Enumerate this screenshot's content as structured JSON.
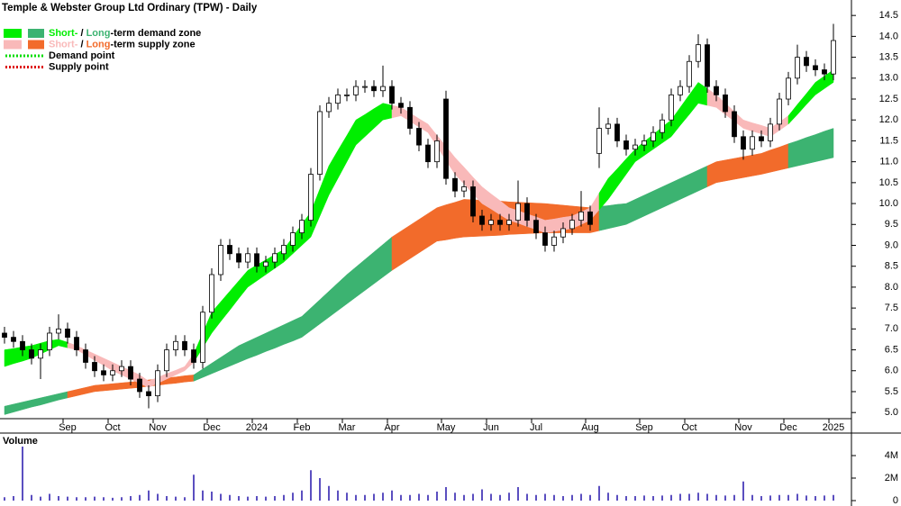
{
  "chart_data": [
    {
      "type": "candlestick",
      "title": "Temple & Webster Group Ltd Ordinary (TPW) - Daily",
      "legend": [
        {
          "parts": [
            "Short-",
            " / ",
            "Long",
            "-term demand zone"
          ],
          "colors": [
            "#00ee00",
            "#3cb371"
          ]
        },
        {
          "parts": [
            "Short-",
            " / ",
            "Long",
            "-term supply zone"
          ],
          "colors": [
            "#f9b9b9",
            "#f26b2b"
          ]
        },
        {
          "parts": [
            "Demand point"
          ],
          "color": "#00dd00"
        },
        {
          "parts": [
            "Supply point"
          ],
          "color": "#dd0000"
        }
      ],
      "categories": [
        null,
        null,
        null,
        null,
        null,
        null,
        null,
        "Sep",
        null,
        null,
        null,
        null,
        "Oct",
        null,
        null,
        null,
        null,
        "Nov",
        null,
        null,
        null,
        null,
        null,
        "Dec",
        null,
        null,
        null,
        null,
        "2024",
        null,
        null,
        null,
        null,
        "Feb",
        null,
        null,
        null,
        null,
        "Mar",
        null,
        null,
        null,
        null,
        "Apr",
        null,
        null,
        null,
        null,
        null,
        "May",
        null,
        null,
        null,
        null,
        "Jun",
        null,
        null,
        null,
        null,
        "Jul",
        null,
        null,
        null,
        null,
        null,
        "Aug",
        null,
        null,
        null,
        null,
        null,
        "Sep",
        null,
        null,
        null,
        null,
        "Oct",
        null,
        null,
        null,
        null,
        null,
        "Nov",
        null,
        null,
        null,
        null,
        "Dec",
        null,
        null,
        null,
        null,
        "2025"
      ],
      "open": [
        6.9,
        6.8,
        6.7,
        6.5,
        6.3,
        6.5,
        6.9,
        7.0,
        6.8,
        6.5,
        6.2,
        6.0,
        5.9,
        6.0,
        6.1,
        5.8,
        5.5,
        5.4,
        6.0,
        6.5,
        6.7,
        6.5,
        6.2,
        7.4,
        8.3,
        9.0,
        8.8,
        8.6,
        8.8,
        8.5,
        8.6,
        8.8,
        9.0,
        9.3,
        9.6,
        10.7,
        12.2,
        12.4,
        12.6,
        12.6,
        12.8,
        12.8,
        12.7,
        12.8,
        12.4,
        12.3,
        11.8,
        11.4,
        11.0,
        12.5,
        10.6,
        10.3,
        10.4,
        9.7,
        9.5,
        9.6,
        9.5,
        9.6,
        10.0,
        9.6,
        9.3,
        9.0,
        9.2,
        9.4,
        9.6,
        9.8,
        11.2,
        11.8,
        11.9,
        11.5,
        11.3,
        11.4,
        11.5,
        11.7,
        12.0,
        12.6,
        12.8,
        13.4,
        13.8,
        12.8,
        12.6,
        12.2,
        11.6,
        11.3,
        11.6,
        11.5,
        11.9,
        12.5,
        13.0,
        13.5,
        13.3,
        13.2,
        13.1
      ],
      "high": [
        7.05,
        6.95,
        6.85,
        6.65,
        6.65,
        7.05,
        7.35,
        7.15,
        6.95,
        6.65,
        6.35,
        6.15,
        6.15,
        6.25,
        6.25,
        5.95,
        5.65,
        6.15,
        6.65,
        6.85,
        6.85,
        6.65,
        7.55,
        8.45,
        9.15,
        9.15,
        8.95,
        8.95,
        8.95,
        8.75,
        8.95,
        9.15,
        9.45,
        9.75,
        10.85,
        12.35,
        12.55,
        12.75,
        12.75,
        12.95,
        12.95,
        12.95,
        13.3,
        12.95,
        12.55,
        12.45,
        11.95,
        11.55,
        11.65,
        12.7,
        10.75,
        10.55,
        10.55,
        9.85,
        9.75,
        9.75,
        9.75,
        10.55,
        10.15,
        9.75,
        9.45,
        9.35,
        9.55,
        9.75,
        10.3,
        9.95,
        12.3,
        12.05,
        12.05,
        11.65,
        11.55,
        11.65,
        11.85,
        12.15,
        12.75,
        12.95,
        13.55,
        14.05,
        13.95,
        12.95,
        12.75,
        12.35,
        11.75,
        11.75,
        11.75,
        12.05,
        12.65,
        13.15,
        13.8,
        13.65,
        13.45,
        13.35,
        14.3
      ],
      "low": [
        6.65,
        6.55,
        6.35,
        6.15,
        5.8,
        6.35,
        6.75,
        6.65,
        6.35,
        6.05,
        5.85,
        5.75,
        5.75,
        5.85,
        5.65,
        5.35,
        5.1,
        5.25,
        5.85,
        6.35,
        6.35,
        6.05,
        6.05,
        7.25,
        8.15,
        8.65,
        8.45,
        8.45,
        8.35,
        8.35,
        8.45,
        8.65,
        8.85,
        9.15,
        9.45,
        10.55,
        12.05,
        12.25,
        12.45,
        12.45,
        12.65,
        12.55,
        12.55,
        12.25,
        12.15,
        11.65,
        11.25,
        10.85,
        10.85,
        10.45,
        10.15,
        10.15,
        9.55,
        9.35,
        9.35,
        9.35,
        9.35,
        9.45,
        9.45,
        9.15,
        8.85,
        8.85,
        9.05,
        9.25,
        9.45,
        9.35,
        10.85,
        11.65,
        11.35,
        11.15,
        11.15,
        11.25,
        11.35,
        11.55,
        11.85,
        12.45,
        12.65,
        13.25,
        12.65,
        12.45,
        12.05,
        11.45,
        11.05,
        11.15,
        11.35,
        11.35,
        11.75,
        12.35,
        12.85,
        13.15,
        13.05,
        12.95,
        12.95
      ],
      "close": [
        6.8,
        6.7,
        6.5,
        6.3,
        6.5,
        6.9,
        7.0,
        6.8,
        6.5,
        6.2,
        6.0,
        5.9,
        6.0,
        6.1,
        5.8,
        5.5,
        5.4,
        6.0,
        6.5,
        6.7,
        6.5,
        6.2,
        7.4,
        8.3,
        9.0,
        8.8,
        8.6,
        8.8,
        8.5,
        8.6,
        8.8,
        9.0,
        9.3,
        9.6,
        10.7,
        12.2,
        12.4,
        12.6,
        12.6,
        12.8,
        12.8,
        12.7,
        12.8,
        12.4,
        12.3,
        11.8,
        11.4,
        11.0,
        11.5,
        10.6,
        10.3,
        10.4,
        9.7,
        9.5,
        9.6,
        9.5,
        9.6,
        10.0,
        9.6,
        9.3,
        9.0,
        9.2,
        9.4,
        9.6,
        9.8,
        9.5,
        11.8,
        11.9,
        11.5,
        11.3,
        11.4,
        11.5,
        11.7,
        12.0,
        12.6,
        12.8,
        13.4,
        13.8,
        12.8,
        12.6,
        12.2,
        11.6,
        11.3,
        11.6,
        11.5,
        11.9,
        12.5,
        13.0,
        13.5,
        13.3,
        13.2,
        13.1,
        13.9
      ],
      "short_term_zone": {
        "upper": [
          6.5,
          6.53,
          6.57,
          6.6,
          6.66,
          6.72,
          6.75,
          6.68,
          6.6,
          6.5,
          6.4,
          6.3,
          6.2,
          6.1,
          6.0,
          5.9,
          5.75,
          5.84,
          5.93,
          6.01,
          6.1,
          6.4,
          6.9,
          7.4,
          7.65,
          7.9,
          8.15,
          8.4,
          8.53,
          8.65,
          8.78,
          8.9,
          9.2,
          9.5,
          9.8,
          10.35,
          10.9,
          11.27,
          11.63,
          12.0,
          12.13,
          12.27,
          12.4,
          12.35,
          12.3,
          12.17,
          12.03,
          11.9,
          11.63,
          11.37,
          11.1,
          10.87,
          10.63,
          10.4,
          10.23,
          10.07,
          9.9,
          9.83,
          9.75,
          9.68,
          9.6,
          9.63,
          9.67,
          9.7,
          9.8,
          9.9,
          10.25,
          10.6,
          10.83,
          11.07,
          11.3,
          11.48,
          11.65,
          11.83,
          12.0,
          12.3,
          12.6,
          12.9,
          12.75,
          12.6,
          12.4,
          12.2,
          12.0,
          11.93,
          11.87,
          11.8,
          11.95,
          12.1,
          12.37,
          12.63,
          12.9,
          13.05,
          13.2
        ],
        "lower": [
          6.1,
          6.17,
          6.23,
          6.3,
          6.4,
          6.5,
          6.6,
          6.55,
          6.5,
          6.38,
          6.25,
          6.13,
          6.0,
          5.9,
          5.8,
          5.7,
          5.6,
          5.7,
          5.8,
          5.9,
          6.0,
          6.2,
          6.55,
          6.9,
          7.18,
          7.45,
          7.73,
          8.0,
          8.15,
          8.3,
          8.45,
          8.6,
          8.8,
          9.0,
          9.2,
          9.7,
          10.2,
          10.6,
          11.0,
          11.4,
          11.6,
          11.8,
          12.0,
          12.05,
          12.1,
          11.97,
          11.83,
          11.7,
          11.37,
          11.03,
          10.7,
          10.47,
          10.23,
          10.0,
          9.87,
          9.73,
          9.6,
          9.53,
          9.45,
          9.38,
          9.3,
          9.33,
          9.37,
          9.4,
          9.5,
          9.6,
          9.85,
          10.1,
          10.4,
          10.7,
          11.0,
          11.15,
          11.3,
          11.45,
          11.6,
          11.87,
          12.13,
          12.4,
          12.35,
          12.3,
          12.13,
          11.97,
          11.8,
          11.73,
          11.67,
          11.6,
          11.75,
          11.9,
          12.13,
          12.37,
          12.6,
          12.75,
          12.9
        ]
      },
      "long_term_zone": {
        "upper": [
          5.15,
          5.2,
          5.25,
          5.3,
          5.35,
          5.4,
          5.45,
          5.5,
          5.55,
          5.6,
          5.65,
          5.67,
          5.69,
          5.71,
          5.73,
          5.75,
          5.78,
          5.8,
          5.83,
          5.85,
          5.88,
          5.9,
          6.04,
          6.18,
          6.32,
          6.46,
          6.6,
          6.7,
          6.8,
          6.9,
          7.0,
          7.1,
          7.2,
          7.3,
          7.5,
          7.7,
          7.9,
          8.1,
          8.3,
          8.48,
          8.66,
          8.84,
          9.02,
          9.2,
          9.34,
          9.48,
          9.62,
          9.76,
          9.9,
          9.97,
          10.03,
          10.1,
          10.09,
          10.08,
          10.07,
          10.06,
          10.04,
          10.03,
          10.02,
          10.01,
          10.0,
          9.98,
          9.96,
          9.94,
          9.92,
          9.9,
          9.93,
          9.95,
          9.98,
          10.0,
          10.1,
          10.2,
          10.3,
          10.4,
          10.5,
          10.6,
          10.7,
          10.8,
          10.9,
          11.0,
          11.04,
          11.08,
          11.12,
          11.16,
          11.2,
          11.28,
          11.35,
          11.43,
          11.5,
          11.58,
          11.65,
          11.73,
          11.8
        ],
        "lower": [
          4.95,
          5.01,
          5.07,
          5.13,
          5.18,
          5.24,
          5.3,
          5.35,
          5.4,
          5.45,
          5.5,
          5.52,
          5.54,
          5.56,
          5.58,
          5.6,
          5.63,
          5.65,
          5.68,
          5.7,
          5.73,
          5.75,
          5.84,
          5.93,
          6.02,
          6.11,
          6.2,
          6.29,
          6.37,
          6.46,
          6.54,
          6.63,
          6.71,
          6.8,
          6.96,
          7.12,
          7.28,
          7.44,
          7.6,
          7.76,
          7.92,
          8.08,
          8.24,
          8.4,
          8.54,
          8.68,
          8.82,
          8.96,
          9.1,
          9.13,
          9.17,
          9.2,
          9.21,
          9.22,
          9.23,
          9.24,
          9.26,
          9.27,
          9.28,
          9.29,
          9.3,
          9.3,
          9.3,
          9.3,
          9.3,
          9.3,
          9.35,
          9.4,
          9.45,
          9.5,
          9.6,
          9.7,
          9.8,
          9.9,
          10.0,
          10.1,
          10.2,
          10.3,
          10.4,
          10.5,
          10.54,
          10.58,
          10.62,
          10.66,
          10.7,
          10.75,
          10.8,
          10.85,
          10.9,
          10.95,
          11.0,
          11.05,
          11.1
        ]
      },
      "zone": [
        "demand",
        "demand",
        "demand",
        "demand",
        "demand",
        "demand",
        "demand",
        "supply",
        "supply",
        "supply",
        "supply",
        "supply",
        "supply",
        "supply",
        "supply",
        "supply",
        "supply",
        "supply",
        "supply",
        "supply",
        "supply",
        "demand",
        "demand",
        "demand",
        "demand",
        "demand",
        "demand",
        "demand",
        "demand",
        "demand",
        "demand",
        "demand",
        "demand",
        "demand",
        "demand",
        "demand",
        "demand",
        "demand",
        "demand",
        "demand",
        "demand",
        "demand",
        "demand",
        "supply",
        "supply",
        "supply",
        "supply",
        "supply",
        "supply",
        "supply",
        "supply",
        "supply",
        "supply",
        "supply",
        "supply",
        "supply",
        "supply",
        "supply",
        "supply",
        "supply",
        "supply",
        "supply",
        "supply",
        "supply",
        "supply",
        "supply",
        "demand",
        "demand",
        "demand",
        "demand",
        "demand",
        "demand",
        "demand",
        "demand",
        "demand",
        "demand",
        "demand",
        "demand",
        "supply",
        "supply",
        "supply",
        "supply",
        "supply",
        "supply",
        "supply",
        "supply",
        "supply",
        "demand",
        "demand",
        "demand",
        "demand",
        "demand",
        "demand"
      ],
      "ylim": [
        4.53,
        14.87
      ],
      "yticks": [
        {
          "value": 5,
          "label": "5.0"
        },
        5.5,
        {
          "value": 6,
          "label": "6.0"
        },
        6.5,
        {
          "value": 7,
          "label": "7.0"
        },
        7.5,
        {
          "value": 8,
          "label": "8.0"
        },
        8.5,
        {
          "value": 9,
          "label": "9.0"
        },
        9.5,
        {
          "value": 10,
          "label": "10.0"
        },
        10.5,
        {
          "value": 11,
          "label": "11.0"
        },
        11.5,
        {
          "value": 12,
          "label": "12.0"
        },
        12.5,
        {
          "value": 13,
          "label": "13.0"
        },
        13.5,
        {
          "value": 14,
          "label": "14.0"
        },
        14.5
      ]
    },
    {
      "type": "bar",
      "title": "Volume",
      "title_color": "#4b0082",
      "color": "#5b4fc0",
      "values": [
        300000,
        400000,
        4800000,
        500000,
        350000,
        600000,
        400000,
        350000,
        300000,
        300000,
        350000,
        300000,
        250000,
        300000,
        400000,
        500000,
        900000,
        600000,
        400000,
        350000,
        300000,
        2300000,
        900000,
        800000,
        600000,
        500000,
        400000,
        350000,
        400000,
        350000,
        400000,
        500000,
        700000,
        900000,
        2700000,
        2000000,
        1300000,
        900000,
        700000,
        500000,
        500000,
        600000,
        700000,
        900000,
        500000,
        500000,
        600000,
        500000,
        800000,
        1200000,
        700000,
        500000,
        600000,
        1000000,
        600000,
        500000,
        700000,
        1200000,
        600000,
        500000,
        600000,
        500000,
        400000,
        500000,
        600000,
        500000,
        1300000,
        700000,
        500000,
        400000,
        400000,
        450000,
        400000,
        450000,
        500000,
        600000,
        600000,
        700000,
        600000,
        500000,
        450000,
        500000,
        1700000,
        500000,
        400000,
        450000,
        500000,
        500000,
        600000,
        450000,
        400000,
        450000,
        500000
      ],
      "ylim": [
        0,
        6080000
      ],
      "yticks": [
        {
          "value": 4000000,
          "label": "4M"
        },
        {
          "value": 2000000,
          "label": "2M"
        },
        0
      ]
    }
  ]
}
